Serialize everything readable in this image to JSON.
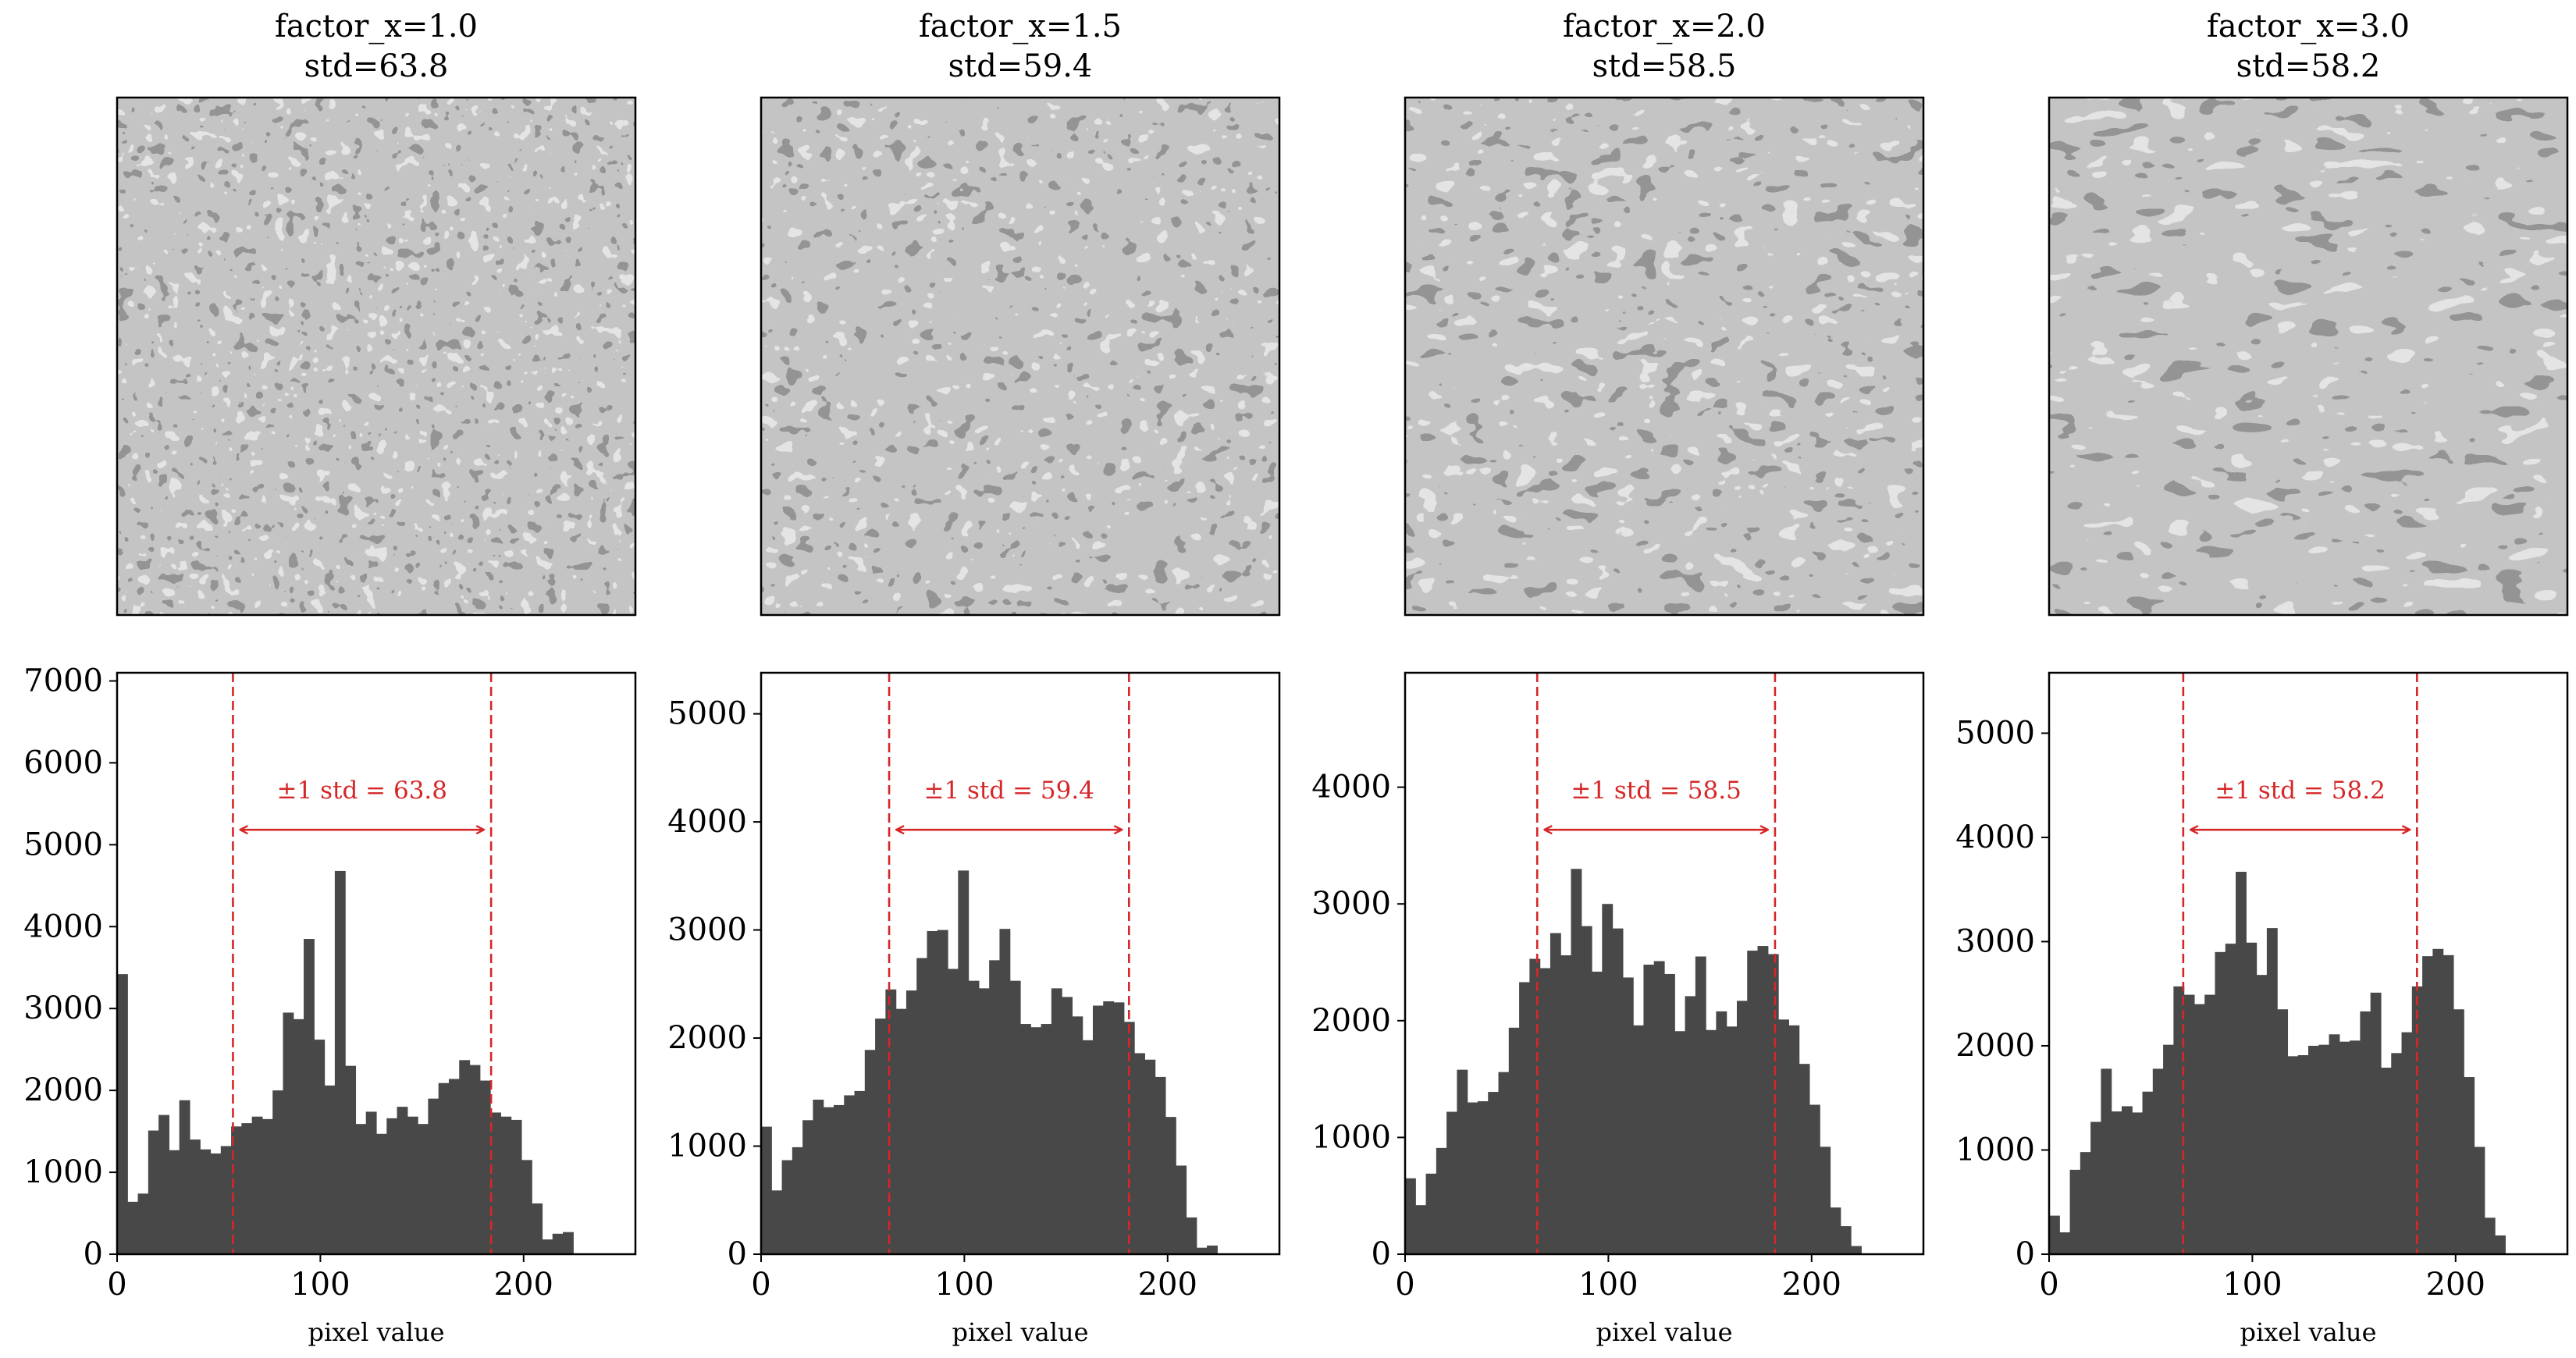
{
  "figure": {
    "background": "#ffffff",
    "bar_color": "#484848",
    "accent_color": "#d62728",
    "axis_color": "#000000",
    "xlabel": "pixel value",
    "annotation_prefix": "±1 std = "
  },
  "panels": [
    {
      "title_line1": "factor_x=1.0",
      "title_line2": "std=63.8",
      "std": 63.8
    },
    {
      "title_line1": "factor_x=1.5",
      "title_line2": "std=59.4",
      "std": 59.4
    },
    {
      "title_line1": "factor_x=2.0",
      "title_line2": "std=58.5",
      "std": 58.5
    },
    {
      "title_line1": "factor_x=3.0",
      "title_line2": "std=58.2",
      "std": 58.2
    }
  ],
  "chart_data": [
    {
      "type": "bar",
      "title": "factor_x=1.0 std=63.8",
      "xlabel": "pixel value",
      "ylabel": "",
      "xlim": [
        0,
        255
      ],
      "ylim": [
        0,
        7100
      ],
      "xticks": [
        0,
        100,
        200
      ],
      "yticks": [
        0,
        1000,
        2000,
        3000,
        4000,
        5000,
        6000,
        7000
      ],
      "grid": false,
      "bin_width": 5.1,
      "values": [
        3420,
        640,
        740,
        1510,
        1700,
        1270,
        1880,
        1400,
        1280,
        1230,
        1320,
        1560,
        1600,
        1680,
        1650,
        2000,
        2950,
        2870,
        3850,
        2620,
        2060,
        4680,
        2300,
        1590,
        1740,
        1470,
        1660,
        1800,
        1680,
        1590,
        1900,
        2090,
        2140,
        2370,
        2310,
        2120,
        1730,
        1680,
        1640,
        1150,
        620,
        180,
        250,
        270
      ],
      "vlines": [
        57,
        184
      ],
      "std": 63.8,
      "annotation": "±1 std = 63.8"
    },
    {
      "type": "bar",
      "title": "factor_x=1.5 std=59.4",
      "xlabel": "pixel value",
      "ylabel": "",
      "xlim": [
        0,
        255
      ],
      "ylim": [
        0,
        5380
      ],
      "xticks": [
        0,
        100,
        200
      ],
      "yticks": [
        0,
        1000,
        2000,
        3000,
        4000,
        5000
      ],
      "grid": false,
      "bin_width": 5.1,
      "values": [
        1180,
        590,
        870,
        990,
        1240,
        1430,
        1360,
        1380,
        1470,
        1510,
        1890,
        2180,
        2450,
        2270,
        2440,
        2740,
        2990,
        3000,
        2640,
        3550,
        2530,
        2460,
        2720,
        3010,
        2530,
        2130,
        2100,
        2130,
        2460,
        2380,
        2200,
        1980,
        2300,
        2340,
        2330,
        2150,
        1860,
        1800,
        1640,
        1270,
        820,
        340,
        60,
        80
      ],
      "vlines": [
        63,
        181
      ],
      "std": 59.4,
      "annotation": "±1 std = 59.4"
    },
    {
      "type": "bar",
      "title": "factor_x=2.0 std=58.5",
      "xlabel": "pixel value",
      "ylabel": "",
      "xlim": [
        0,
        255
      ],
      "ylim": [
        0,
        4980
      ],
      "xticks": [
        0,
        100,
        200
      ],
      "yticks": [
        0,
        1000,
        2000,
        3000,
        4000
      ],
      "grid": false,
      "bin_width": 5.1,
      "values": [
        650,
        420,
        690,
        910,
        1220,
        1580,
        1300,
        1310,
        1390,
        1560,
        1940,
        2330,
        2530,
        2450,
        2750,
        2560,
        3300,
        2810,
        2420,
        3000,
        2790,
        2370,
        1960,
        2480,
        2510,
        2400,
        1910,
        2210,
        2550,
        1920,
        2080,
        1950,
        2170,
        2600,
        2640,
        2570,
        2010,
        1960,
        1630,
        1280,
        920,
        400,
        240,
        70
      ],
      "vlines": [
        65,
        182
      ],
      "std": 58.5,
      "annotation": "±1 std = 58.5"
    },
    {
      "type": "bar",
      "title": "factor_x=3.0 std=58.2",
      "xlabel": "pixel value",
      "ylabel": "",
      "xlim": [
        0,
        255
      ],
      "ylim": [
        0,
        5580
      ],
      "xticks": [
        0,
        100,
        200
      ],
      "yticks": [
        0,
        1000,
        2000,
        3000,
        4000,
        5000
      ],
      "grid": false,
      "bin_width": 5.1,
      "values": [
        370,
        210,
        810,
        980,
        1270,
        1780,
        1370,
        1420,
        1360,
        1560,
        1780,
        2010,
        2570,
        2490,
        2400,
        2490,
        2900,
        2980,
        3670,
        2990,
        2680,
        3130,
        2350,
        1900,
        1910,
        2000,
        2010,
        2110,
        2040,
        2050,
        2330,
        2510,
        1790,
        1930,
        2130,
        2570,
        2860,
        2930,
        2870,
        2350,
        1700,
        1030,
        350,
        180
      ],
      "vlines": [
        66,
        181
      ],
      "std": 58.2,
      "annotation": "±1 std = 58.2"
    }
  ]
}
